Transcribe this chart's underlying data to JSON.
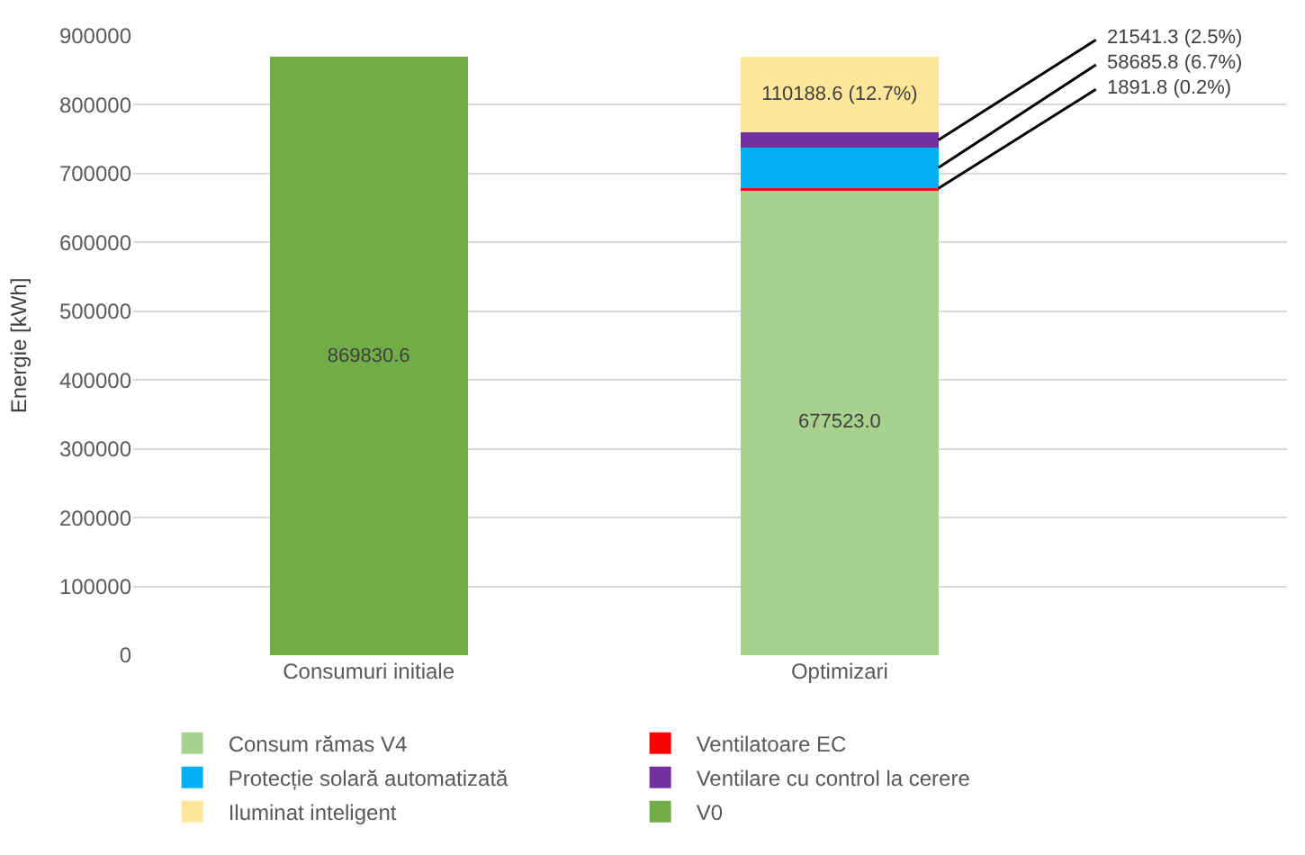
{
  "chart_data": {
    "type": "bar",
    "stacked": true,
    "ylabel": "Energie [kWh]",
    "categories": [
      "Consumuri initiale",
      "Optimizari"
    ],
    "series": [
      {
        "name": "Consum rămas V4",
        "color": "#a9d18e",
        "values": [
          null,
          677523.0
        ],
        "value_labels": [
          null,
          "677523.0"
        ]
      },
      {
        "name": "Ventilatoare EC",
        "color": "#ff0000",
        "values": [
          null,
          1891.8
        ],
        "value_labels": [
          null,
          "1891.8 (0.2%)"
        ]
      },
      {
        "name": "Protecție solară automatizată",
        "color": "#00b0f0",
        "values": [
          null,
          58685.8
        ],
        "value_labels": [
          null,
          "58685.8 (6.7%)"
        ]
      },
      {
        "name": "Ventilare cu control la cerere",
        "color": "#7030a0",
        "values": [
          null,
          21541.3
        ],
        "value_labels": [
          null,
          "21541.3 (2.5%)"
        ]
      },
      {
        "name": "Iluminat inteligent",
        "color": "#ffe699",
        "values": [
          null,
          110188.6
        ],
        "value_labels": [
          null,
          "110188.6 (12.7%)"
        ]
      },
      {
        "name": "V0",
        "color": "#70ad47",
        "values": [
          869830.6,
          null
        ],
        "value_labels": [
          "869830.6",
          null
        ]
      }
    ],
    "ylim": [
      0,
      900000
    ],
    "yticks": [
      0,
      100000,
      200000,
      300000,
      400000,
      500000,
      600000,
      700000,
      800000,
      900000
    ],
    "grid": "y",
    "legend": "bottom"
  }
}
